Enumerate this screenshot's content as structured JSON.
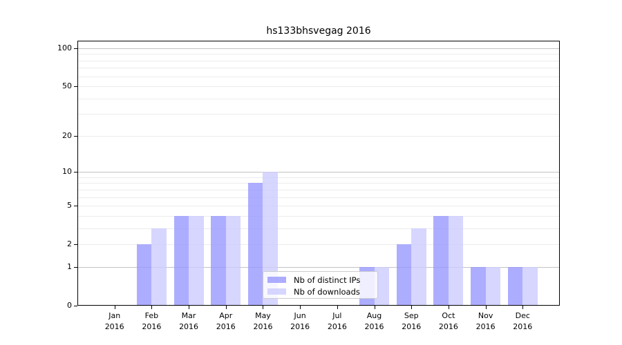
{
  "chart_data": {
    "type": "bar",
    "title": "hs133bhsvegag 2016",
    "categories": [
      "Jan",
      "Feb",
      "Mar",
      "Apr",
      "May",
      "Jun",
      "Jul",
      "Aug",
      "Sep",
      "Oct",
      "Nov",
      "Dec"
    ],
    "year": "2016",
    "series": [
      {
        "name": "Nb of distinct IPs",
        "color": "#9999ff",
        "alpha": 0.8,
        "values": [
          0,
          2,
          4,
          4,
          8,
          0,
          0,
          1,
          2,
          4,
          1,
          1
        ]
      },
      {
        "name": "Nb of downloads",
        "color": "#ccccff",
        "alpha": 0.8,
        "values": [
          0,
          3,
          4,
          4,
          10,
          0,
          0,
          1,
          3,
          4,
          1,
          1
        ]
      }
    ],
    "xlabel": "",
    "ylabel": "",
    "y_axis": {
      "scale": "log1p",
      "ticks": [
        0,
        1,
        2,
        5,
        10,
        20,
        50,
        100
      ],
      "minor_gridlines": [
        3,
        4,
        6,
        7,
        8,
        9,
        30,
        40,
        60,
        70,
        80,
        90
      ],
      "ylim": [
        0,
        115
      ]
    },
    "grid": true,
    "legend_position": "inside-bottom-center",
    "colors": {
      "gridline_power_of_ten": "#c2c2c2",
      "gridline_regular": "#ececec",
      "axis": "#000000",
      "background": "#ffffff"
    }
  }
}
